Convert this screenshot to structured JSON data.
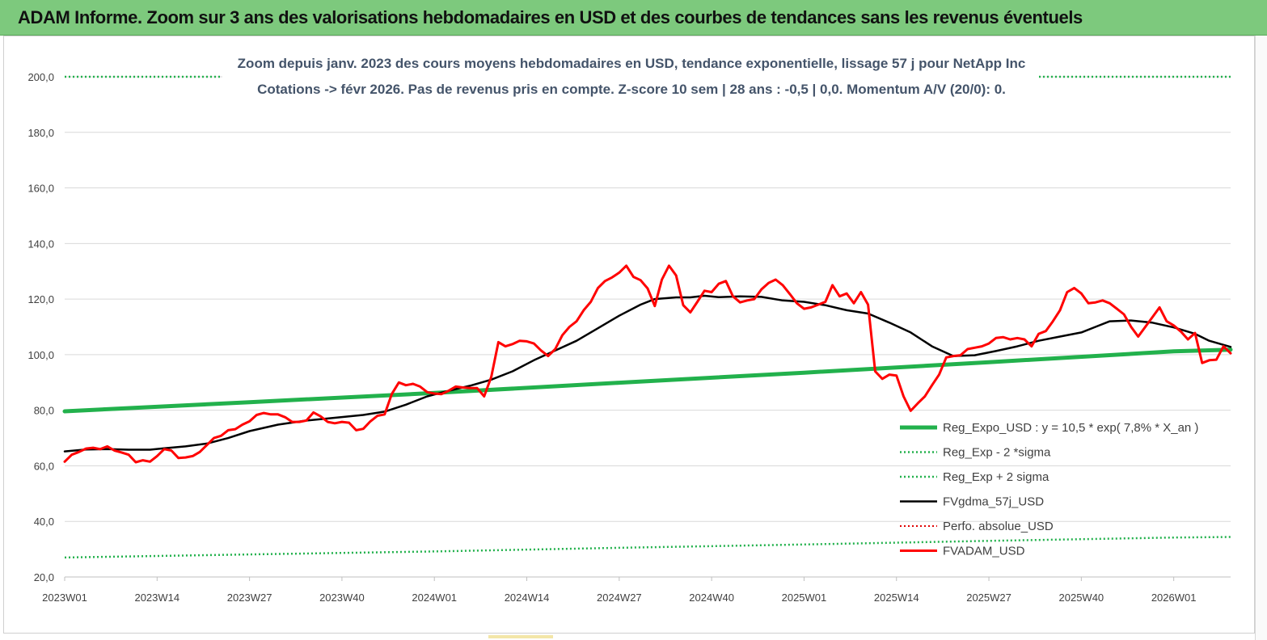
{
  "header": {
    "title": "ADAM Informe. Zoom sur 3 ans des valorisations hebdomadaires en USD et des courbes de tendances sans les revenus éventuels"
  },
  "colors": {
    "banner": "#7dc97d",
    "regression": "#22b14c",
    "sigma": "#22b14c",
    "fvgdma": "#000000",
    "perfo": "#e00000",
    "fvadam": "#ff0000",
    "grid": "#d9d9d9"
  },
  "chart_data": {
    "type": "line",
    "title_line1": "Zoom depuis janv. 2023 des cours moyens hebdomadaires en USD, tendance exponentielle, lissage 57 j pour NetApp Inc",
    "title_line2": "Cotations -> févr 2026. Pas de revenus pris en compte. Z-score 10 sem  | 28 ans : -0,5 | 0,0. Momentum A/V (20/0): 0.",
    "xlabel": "",
    "ylabel": "",
    "ylim": [
      20,
      200
    ],
    "yticks": [
      "20,0",
      "40,0",
      "60,0",
      "80,0",
      "100,0",
      "120,0",
      "140,0",
      "160,0",
      "180,0",
      "200,0"
    ],
    "xticks": [
      "2023W01",
      "2023W14",
      "2023W27",
      "2023W40",
      "2024W01",
      "2024W14",
      "2024W27",
      "2024W40",
      "2025W01",
      "2025W14",
      "2025W27",
      "2025W40",
      "2026W01"
    ],
    "x_start_week": 0,
    "x_end_week": 164,
    "grid": "horizontal",
    "legend_position": "bottom-right",
    "series": [
      {
        "name": "Reg_Expo_USD : y = 10,5 * exp( 7,8% *  X_an )",
        "key": "reg",
        "points": [
          [
            0,
            79.6
          ],
          [
            26,
            82.9
          ],
          [
            52,
            86.2
          ],
          [
            78,
            89.9
          ],
          [
            104,
            93.5
          ],
          [
            130,
            97.3
          ],
          [
            156,
            101.2
          ],
          [
            164,
            101.8
          ]
        ]
      },
      {
        "name": "Reg_Exp - 2 *sigma",
        "key": "minus",
        "points": [
          [
            0,
            27.0
          ],
          [
            26,
            28.1
          ],
          [
            52,
            29.2
          ],
          [
            78,
            30.5
          ],
          [
            104,
            31.7
          ],
          [
            130,
            33.0
          ],
          [
            156,
            34.2
          ],
          [
            164,
            34.4
          ]
        ]
      },
      {
        "name": "Reg_Exp + 2 sigma",
        "key": "plus",
        "points": [
          [
            0,
            200
          ],
          [
            164,
            200
          ]
        ]
      },
      {
        "name": "FVgdma_57j_USD",
        "key": "fvgdma",
        "points": [
          [
            0,
            65.2
          ],
          [
            3,
            65.9
          ],
          [
            6,
            66.0
          ],
          [
            9,
            65.8
          ],
          [
            12,
            65.8
          ],
          [
            14,
            66.3
          ],
          [
            17,
            67.0
          ],
          [
            20,
            68.0
          ],
          [
            23,
            70.0
          ],
          [
            26,
            72.5
          ],
          [
            30,
            74.8
          ],
          [
            34,
            76.3
          ],
          [
            38,
            77.3
          ],
          [
            42,
            78.3
          ],
          [
            45,
            79.5
          ],
          [
            48,
            82.0
          ],
          [
            51,
            85.0
          ],
          [
            54,
            87.0
          ],
          [
            57,
            88.8
          ],
          [
            60,
            91.0
          ],
          [
            63,
            94.0
          ],
          [
            66,
            98.0
          ],
          [
            69,
            101.5
          ],
          [
            72,
            105.0
          ],
          [
            75,
            109.5
          ],
          [
            78,
            114.0
          ],
          [
            81,
            118.0
          ],
          [
            83,
            120.0
          ],
          [
            86,
            120.6
          ],
          [
            88,
            120.6
          ],
          [
            90,
            121.2
          ],
          [
            92,
            120.7
          ],
          [
            95,
            121.0
          ],
          [
            98,
            120.8
          ],
          [
            101,
            119.5
          ],
          [
            104,
            119.0
          ],
          [
            107,
            117.8
          ],
          [
            110,
            116.0
          ],
          [
            113,
            114.8
          ],
          [
            116,
            111.5
          ],
          [
            119,
            108.0
          ],
          [
            122,
            103.0
          ],
          [
            125,
            99.5
          ],
          [
            128,
            99.8
          ],
          [
            131,
            101.3
          ],
          [
            134,
            103.0
          ],
          [
            137,
            105.0
          ],
          [
            140,
            106.5
          ],
          [
            143,
            108.0
          ],
          [
            145,
            110.0
          ],
          [
            147,
            112.0
          ],
          [
            150,
            112.3
          ],
          [
            153,
            111.5
          ],
          [
            156,
            109.8
          ],
          [
            159,
            107.5
          ],
          [
            161,
            105.0
          ],
          [
            164,
            102.8
          ]
        ]
      },
      {
        "name": "Perfo. absolue_USD",
        "key": "perfo",
        "points": []
      },
      {
        "name": "FVADAM_USD",
        "key": "fvadam",
        "points": [
          [
            0,
            61.5
          ],
          [
            1,
            64.0
          ],
          [
            2,
            65.0
          ],
          [
            3,
            66.2
          ],
          [
            4,
            66.5
          ],
          [
            5,
            66.0
          ],
          [
            6,
            67.0
          ],
          [
            7,
            65.5
          ],
          [
            8,
            64.8
          ],
          [
            9,
            64.0
          ],
          [
            10,
            61.3
          ],
          [
            11,
            62.0
          ],
          [
            12,
            61.5
          ],
          [
            13,
            63.5
          ],
          [
            14,
            66.0
          ],
          [
            15,
            65.5
          ],
          [
            16,
            62.8
          ],
          [
            17,
            63.0
          ],
          [
            18,
            63.5
          ],
          [
            19,
            65.0
          ],
          [
            20,
            67.5
          ],
          [
            21,
            70.0
          ],
          [
            22,
            70.8
          ],
          [
            23,
            72.8
          ],
          [
            24,
            73.2
          ],
          [
            25,
            74.8
          ],
          [
            26,
            76.0
          ],
          [
            27,
            78.3
          ],
          [
            28,
            79.0
          ],
          [
            29,
            78.5
          ],
          [
            30,
            78.5
          ],
          [
            31,
            77.5
          ],
          [
            32,
            75.8
          ],
          [
            33,
            75.8
          ],
          [
            34,
            76.3
          ],
          [
            35,
            79.2
          ],
          [
            36,
            77.8
          ],
          [
            37,
            75.8
          ],
          [
            38,
            75.3
          ],
          [
            39,
            75.8
          ],
          [
            40,
            75.5
          ],
          [
            41,
            72.8
          ],
          [
            42,
            73.3
          ],
          [
            43,
            76.0
          ],
          [
            44,
            78.0
          ],
          [
            45,
            78.5
          ],
          [
            46,
            85.8
          ],
          [
            47,
            90.0
          ],
          [
            48,
            89.0
          ],
          [
            49,
            89.5
          ],
          [
            50,
            88.5
          ],
          [
            51,
            86.5
          ],
          [
            52,
            86.0
          ],
          [
            53,
            85.8
          ],
          [
            54,
            87.0
          ],
          [
            55,
            88.5
          ],
          [
            56,
            88.2
          ],
          [
            57,
            88.0
          ],
          [
            58,
            88.0
          ],
          [
            59,
            85.0
          ],
          [
            60,
            92.0
          ],
          [
            61,
            104.5
          ],
          [
            62,
            103.0
          ],
          [
            63,
            103.8
          ],
          [
            64,
            105.0
          ],
          [
            65,
            104.8
          ],
          [
            66,
            104.0
          ],
          [
            67,
            101.5
          ],
          [
            68,
            99.5
          ],
          [
            69,
            102.0
          ],
          [
            70,
            107.0
          ],
          [
            71,
            110.0
          ],
          [
            72,
            112.0
          ],
          [
            73,
            116.0
          ],
          [
            74,
            119.0
          ],
          [
            75,
            124.0
          ],
          [
            76,
            126.5
          ],
          [
            77,
            127.8
          ],
          [
            78,
            129.5
          ],
          [
            79,
            132.0
          ],
          [
            80,
            128.0
          ],
          [
            81,
            126.8
          ],
          [
            82,
            123.8
          ],
          [
            83,
            117.5
          ],
          [
            84,
            127.0
          ],
          [
            85,
            132.0
          ],
          [
            86,
            128.5
          ],
          [
            87,
            117.8
          ],
          [
            88,
            115.2
          ],
          [
            89,
            119.0
          ],
          [
            90,
            123.0
          ],
          [
            91,
            122.5
          ],
          [
            92,
            125.5
          ],
          [
            93,
            126.5
          ],
          [
            94,
            121.0
          ],
          [
            95,
            118.8
          ],
          [
            96,
            119.5
          ],
          [
            97,
            120.0
          ],
          [
            98,
            123.5
          ],
          [
            99,
            125.8
          ],
          [
            100,
            127.0
          ],
          [
            101,
            125.0
          ],
          [
            102,
            121.8
          ],
          [
            103,
            118.5
          ],
          [
            104,
            116.5
          ],
          [
            105,
            117.0
          ],
          [
            106,
            118.0
          ],
          [
            107,
            119.0
          ],
          [
            108,
            125.0
          ],
          [
            109,
            121.0
          ],
          [
            110,
            122.0
          ],
          [
            111,
            118.5
          ],
          [
            112,
            122.5
          ],
          [
            113,
            118.0
          ],
          [
            114,
            94.0
          ],
          [
            115,
            91.3
          ],
          [
            116,
            92.8
          ],
          [
            117,
            92.5
          ],
          [
            118,
            85.0
          ],
          [
            119,
            79.8
          ],
          [
            120,
            82.5
          ],
          [
            121,
            85.0
          ],
          [
            122,
            89.0
          ],
          [
            123,
            92.8
          ],
          [
            124,
            99.0
          ],
          [
            125,
            99.5
          ],
          [
            126,
            99.8
          ],
          [
            127,
            102.0
          ],
          [
            128,
            102.5
          ],
          [
            129,
            103.0
          ],
          [
            130,
            104.0
          ],
          [
            131,
            106.0
          ],
          [
            132,
            106.3
          ],
          [
            133,
            105.5
          ],
          [
            134,
            106.0
          ],
          [
            135,
            105.5
          ],
          [
            136,
            103.0
          ],
          [
            137,
            107.5
          ],
          [
            138,
            108.5
          ],
          [
            139,
            112.0
          ],
          [
            140,
            116.0
          ],
          [
            141,
            122.5
          ],
          [
            142,
            124.0
          ],
          [
            143,
            122.0
          ],
          [
            144,
            118.5
          ],
          [
            145,
            118.8
          ],
          [
            146,
            119.5
          ],
          [
            147,
            118.5
          ],
          [
            148,
            116.5
          ],
          [
            149,
            114.5
          ],
          [
            150,
            110.0
          ],
          [
            151,
            106.5
          ],
          [
            152,
            110.0
          ],
          [
            153,
            113.5
          ],
          [
            154,
            117.0
          ],
          [
            155,
            112.0
          ],
          [
            156,
            110.5
          ],
          [
            157,
            108.3
          ],
          [
            158,
            105.5
          ],
          [
            159,
            107.8
          ],
          [
            160,
            97.0
          ],
          [
            161,
            98.0
          ],
          [
            162,
            98.2
          ],
          [
            163,
            103.0
          ],
          [
            164,
            100.5
          ]
        ]
      }
    ]
  }
}
